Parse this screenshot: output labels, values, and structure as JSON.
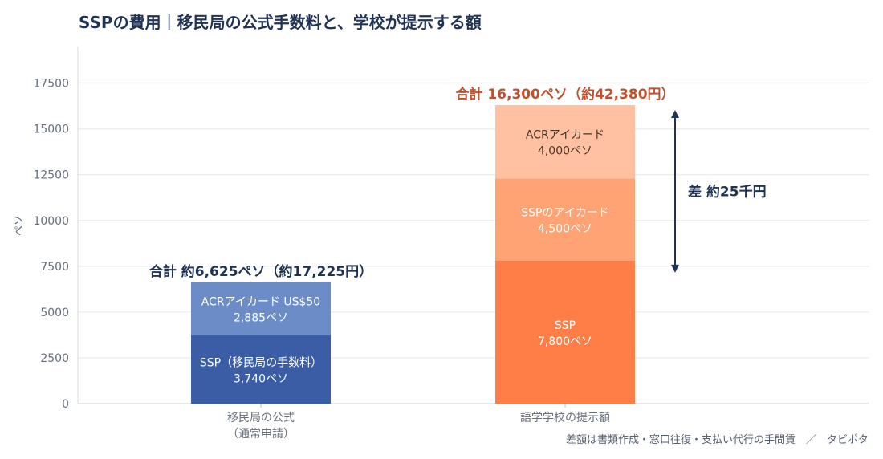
{
  "chart_data": {
    "type": "bar",
    "stacked": true,
    "title": "SSPの費用｜移民局の公式手数料と、学校が提示する額",
    "ylabel": "ペソ",
    "ylim": [
      0,
      19500
    ],
    "yticks": [
      0,
      2500,
      5000,
      7500,
      10000,
      12500,
      15000,
      17500
    ],
    "grid": true,
    "categories": [
      {
        "label_line1": "移民局の公式",
        "label_line2": "（通常申請）"
      },
      {
        "label_line1": "語学学校の提示額",
        "label_line2": ""
      }
    ],
    "bars": [
      {
        "total_label": "合計 約6,625ペソ（約17,225円）",
        "total": 6625,
        "segments": [
          {
            "value": 3740,
            "label_line1": "SSP（移民局の手数料）",
            "label_line2": "3,740ペソ",
            "color": "#3a5da5"
          },
          {
            "value": 2885,
            "label_line1": "ACRアイカード US$50",
            "label_line2": "2,885ペソ",
            "color": "#6b8cc6"
          }
        ]
      },
      {
        "total_label": "合計 16,300ペソ（約42,380円）",
        "total": 16300,
        "segments": [
          {
            "value": 7800,
            "label_line1": "SSP",
            "label_line2": "7,800ペソ",
            "color": "#ff7d47"
          },
          {
            "value": 4500,
            "label_line1": "SSPのアイカード",
            "label_line2": "4,500ペソ",
            "color": "#ffa274"
          },
          {
            "value": 4000,
            "label_line1": "ACRアイカード",
            "label_line2": "4,000ペソ",
            "color": "#ffc1a2"
          }
        ]
      }
    ],
    "difference": {
      "label": "差 約25千円",
      "from": 6625,
      "to": 16300
    },
    "footnote": "差額は書類作成・窓口往復・支払い代行の手間賃　／　タビポタ"
  },
  "colors": {
    "title": "#1f3355",
    "axis_text": "#666f7d",
    "grid": "#e3e7ee",
    "total_left": "#1f3355",
    "total_right": "#c1502e",
    "arrow": "#1f3355",
    "segment_text_left": "#ffffff",
    "segment_text_right_dark": "#ffffff",
    "segment_text_light": "#4a3326"
  }
}
